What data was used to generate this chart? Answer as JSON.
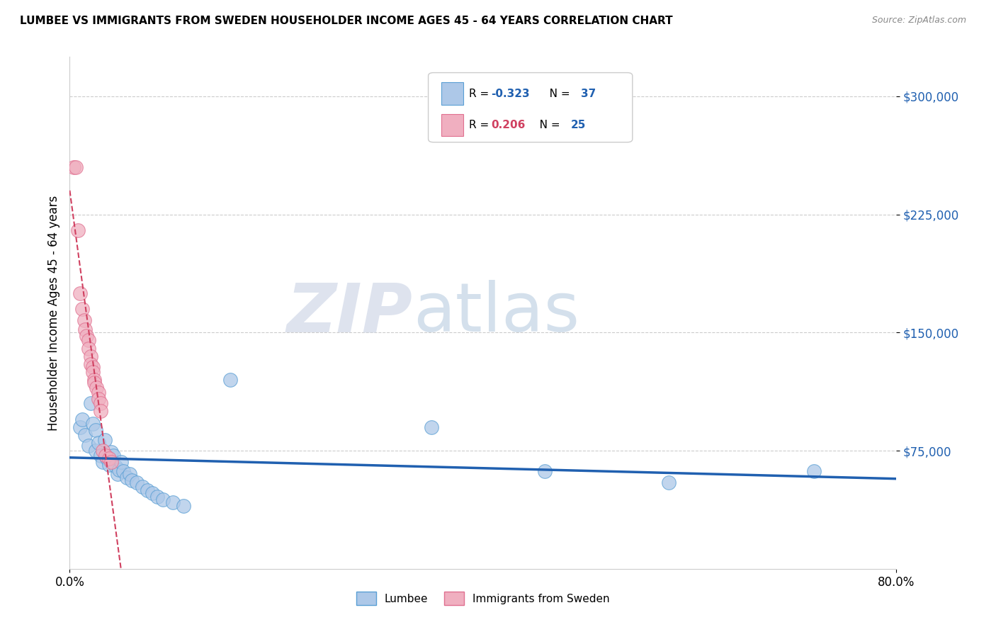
{
  "title": "LUMBEE VS IMMIGRANTS FROM SWEDEN HOUSEHOLDER INCOME AGES 45 - 64 YEARS CORRELATION CHART",
  "source": "Source: ZipAtlas.com",
  "ylabel": "Householder Income Ages 45 - 64 years",
  "xlim": [
    0.0,
    0.8
  ],
  "ylim": [
    0,
    325000
  ],
  "yticks": [
    75000,
    150000,
    225000,
    300000
  ],
  "ytick_labels": [
    "$75,000",
    "$150,000",
    "$225,000",
    "$300,000"
  ],
  "xticks": [
    0.0,
    0.8
  ],
  "xtick_labels": [
    "0.0%",
    "80.0%"
  ],
  "watermark_zip": "ZIP",
  "watermark_atlas": "atlas",
  "lumbee_R": -0.323,
  "lumbee_N": 37,
  "sweden_R": 0.206,
  "sweden_N": 25,
  "lumbee_color": "#adc8e8",
  "sweden_color": "#f0afc0",
  "lumbee_edge_color": "#5a9fd4",
  "sweden_edge_color": "#e07090",
  "lumbee_line_color": "#2060b0",
  "sweden_line_color": "#d04060",
  "lumbee_scatter": [
    [
      0.01,
      90000
    ],
    [
      0.012,
      95000
    ],
    [
      0.015,
      85000
    ],
    [
      0.018,
      78000
    ],
    [
      0.02,
      105000
    ],
    [
      0.022,
      92000
    ],
    [
      0.025,
      88000
    ],
    [
      0.025,
      75000
    ],
    [
      0.028,
      80000
    ],
    [
      0.03,
      72000
    ],
    [
      0.032,
      68000
    ],
    [
      0.034,
      82000
    ],
    [
      0.036,
      70000
    ],
    [
      0.038,
      66000
    ],
    [
      0.04,
      74000
    ],
    [
      0.042,
      72000
    ],
    [
      0.044,
      65000
    ],
    [
      0.046,
      60000
    ],
    [
      0.048,
      63000
    ],
    [
      0.05,
      68000
    ],
    [
      0.052,
      62000
    ],
    [
      0.055,
      58000
    ],
    [
      0.058,
      60000
    ],
    [
      0.06,
      56000
    ],
    [
      0.065,
      55000
    ],
    [
      0.07,
      52000
    ],
    [
      0.075,
      50000
    ],
    [
      0.08,
      48000
    ],
    [
      0.085,
      46000
    ],
    [
      0.09,
      44000
    ],
    [
      0.1,
      42000
    ],
    [
      0.11,
      40000
    ],
    [
      0.155,
      120000
    ],
    [
      0.35,
      90000
    ],
    [
      0.46,
      62000
    ],
    [
      0.58,
      55000
    ],
    [
      0.72,
      62000
    ]
  ],
  "sweden_scatter": [
    [
      0.004,
      255000
    ],
    [
      0.006,
      255000
    ],
    [
      0.008,
      215000
    ],
    [
      0.01,
      175000
    ],
    [
      0.012,
      165000
    ],
    [
      0.014,
      158000
    ],
    [
      0.015,
      152000
    ],
    [
      0.016,
      148000
    ],
    [
      0.018,
      145000
    ],
    [
      0.018,
      140000
    ],
    [
      0.02,
      135000
    ],
    [
      0.02,
      130000
    ],
    [
      0.022,
      128000
    ],
    [
      0.022,
      125000
    ],
    [
      0.024,
      120000
    ],
    [
      0.024,
      118000
    ],
    [
      0.026,
      115000
    ],
    [
      0.028,
      112000
    ],
    [
      0.028,
      108000
    ],
    [
      0.03,
      105000
    ],
    [
      0.03,
      100000
    ],
    [
      0.032,
      75000
    ],
    [
      0.035,
      72000
    ],
    [
      0.038,
      70000
    ],
    [
      0.04,
      68000
    ]
  ]
}
